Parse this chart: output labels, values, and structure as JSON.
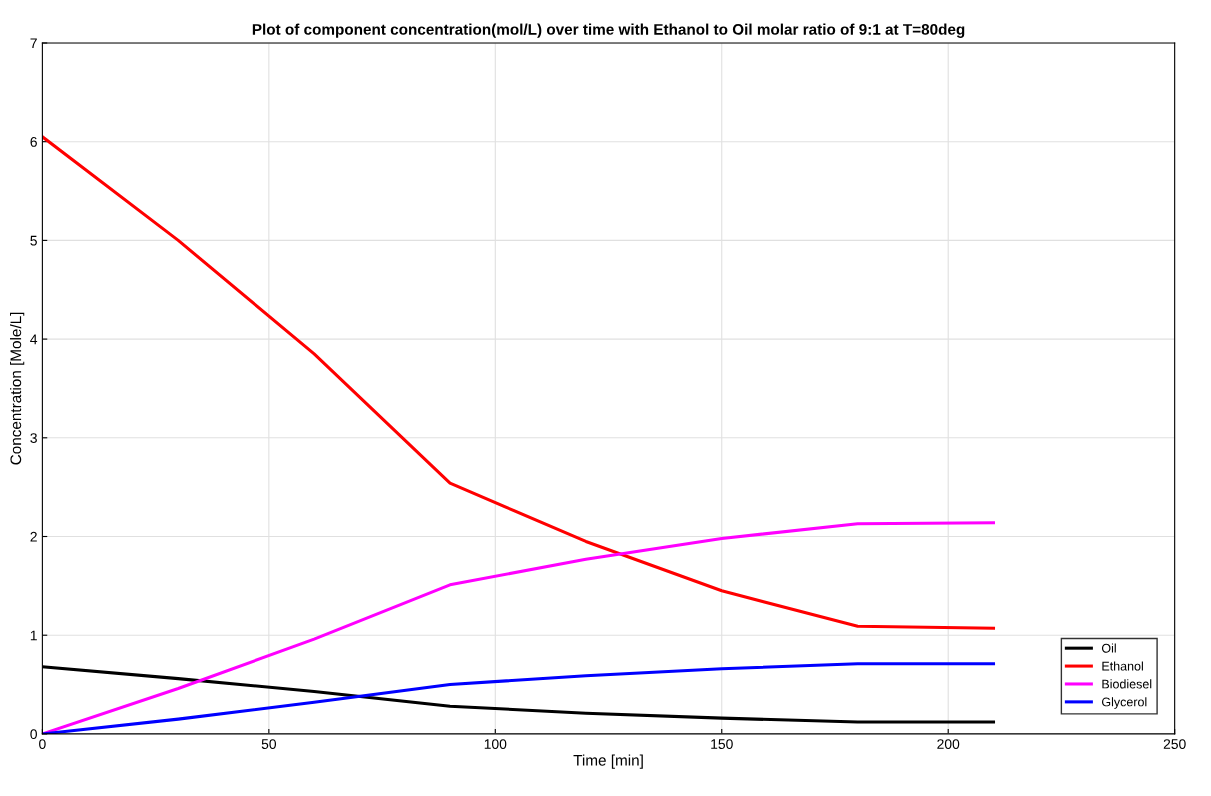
{
  "chart_data": {
    "type": "line",
    "title": "Plot of component concentration(mol/L) over time with Ethanol to Oil molar ratio of 9:1 at T=80deg",
    "xlabel": "Time [min]",
    "ylabel": "Concentration [Mole/L]",
    "x": [
      0,
      30,
      60,
      90,
      120,
      150,
      180,
      210
    ],
    "series": [
      {
        "name": "Oil",
        "color": "#000000",
        "values": [
          0.68,
          0.56,
          0.43,
          0.28,
          0.21,
          0.16,
          0.12,
          0.12
        ]
      },
      {
        "name": "Ethanol",
        "color": "#ff0000",
        "values": [
          6.05,
          5.0,
          3.85,
          2.54,
          1.95,
          1.45,
          1.09,
          1.07
        ]
      },
      {
        "name": "Biodiesel",
        "color": "#ff00ff",
        "values": [
          0,
          0.46,
          0.96,
          1.51,
          1.77,
          1.98,
          2.13,
          2.14
        ]
      },
      {
        "name": "Glycerol",
        "color": "#0000ff",
        "values": [
          0,
          0.15,
          0.32,
          0.5,
          0.59,
          0.66,
          0.71,
          0.71
        ]
      }
    ],
    "xlim": [
      0,
      250
    ],
    "xticks": [
      0,
      50,
      100,
      150,
      200,
      250
    ],
    "ylim": [
      0,
      7
    ],
    "yticks": [
      0,
      1,
      2,
      3,
      4,
      5,
      6,
      7
    ],
    "grid": true,
    "legend": "bottom right",
    "line_style": "solid",
    "marker": "none"
  }
}
